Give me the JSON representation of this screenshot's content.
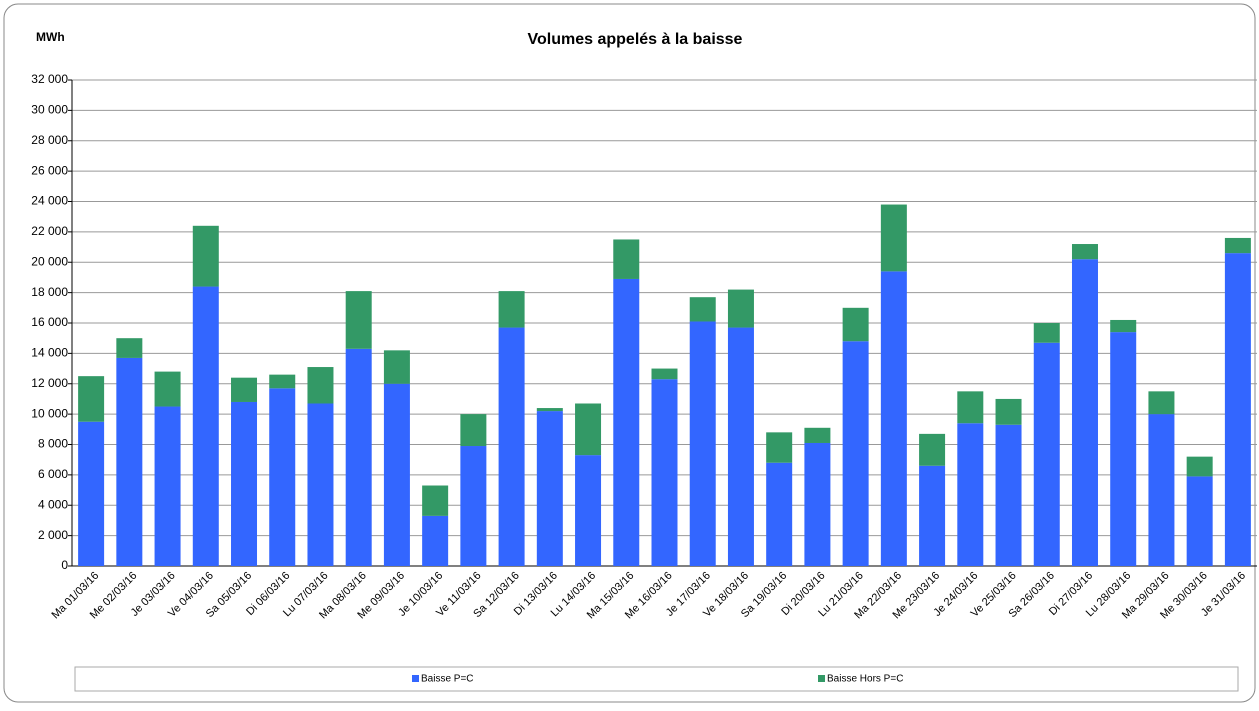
{
  "chart_data": {
    "type": "stacked_bar",
    "title": "Volumes appelés à la baisse",
    "y_label": "MWh",
    "categories": [
      "Ma 01/03/16",
      "Me 02/03/16",
      "Je 03/03/16",
      "Ve 04/03/16",
      "Sa 05/03/16",
      "Di 06/03/16",
      "Lu 07/03/16",
      "Ma 08/03/16",
      "Me 09/03/16",
      "Je 10/03/16",
      "Ve 11/03/16",
      "Sa 12/03/16",
      "Di 13/03/16",
      "Lu 14/03/16",
      "Ma 15/03/16",
      "Me 16/03/16",
      "Je 17/03/16",
      "Ve 18/03/16",
      "Sa 19/03/16",
      "Di 20/03/16",
      "Lu 21/03/16",
      "Ma 22/03/16",
      "Me 23/03/16",
      "Je 24/03/16",
      "Ve 25/03/16",
      "Sa 26/03/16",
      "Di 27/03/16",
      "Lu 28/03/16",
      "Ma 29/03/16",
      "Me 30/03/16",
      "Je 31/03/16"
    ],
    "series": [
      {
        "name": "Baisse P=C",
        "color": "#3366ff",
        "values": [
          9500,
          13700,
          10500,
          18400,
          10800,
          11700,
          10700,
          14300,
          12000,
          3300,
          7900,
          15700,
          10200,
          7300,
          18900,
          12300,
          16100,
          15700,
          6800,
          8100,
          14800,
          19400,
          6600,
          9400,
          9300,
          14700,
          20200,
          15400,
          10000,
          5900,
          20600
        ]
      },
      {
        "name": "Baisse Hors P=C",
        "color": "#339966",
        "values": [
          3000,
          1300,
          2300,
          4000,
          1600,
          900,
          2400,
          3800,
          2200,
          2000,
          2100,
          2400,
          200,
          3400,
          2600,
          700,
          1600,
          2500,
          2000,
          1000,
          2200,
          4400,
          2100,
          2100,
          1700,
          1300,
          1000,
          800,
          1500,
          1300,
          1000
        ]
      }
    ],
    "ylim": [
      0,
      32000
    ],
    "yticks": [
      0,
      {
        "value": 2000,
        "label": "2 000"
      },
      {
        "value": 4000,
        "label": "4 000"
      },
      {
        "value": 6000,
        "label": "6 000"
      },
      {
        "value": 8000,
        "label": "8 000"
      },
      {
        "value": 10000,
        "label": "10 000"
      },
      {
        "value": 12000,
        "label": "12 000"
      },
      {
        "value": 14000,
        "label": "14 000"
      },
      {
        "value": 16000,
        "label": "16 000"
      },
      {
        "value": 18000,
        "label": "18 000"
      },
      {
        "value": 20000,
        "label": "20 000"
      },
      {
        "value": 22000,
        "label": "22 000"
      },
      {
        "value": 24000,
        "label": "24 000"
      },
      {
        "value": 26000,
        "label": "26 000"
      },
      {
        "value": 28000,
        "label": "28 000"
      },
      {
        "value": 30000,
        "label": "30 000"
      },
      {
        "value": 32000,
        "label": "32 000"
      }
    ],
    "grid": true
  }
}
